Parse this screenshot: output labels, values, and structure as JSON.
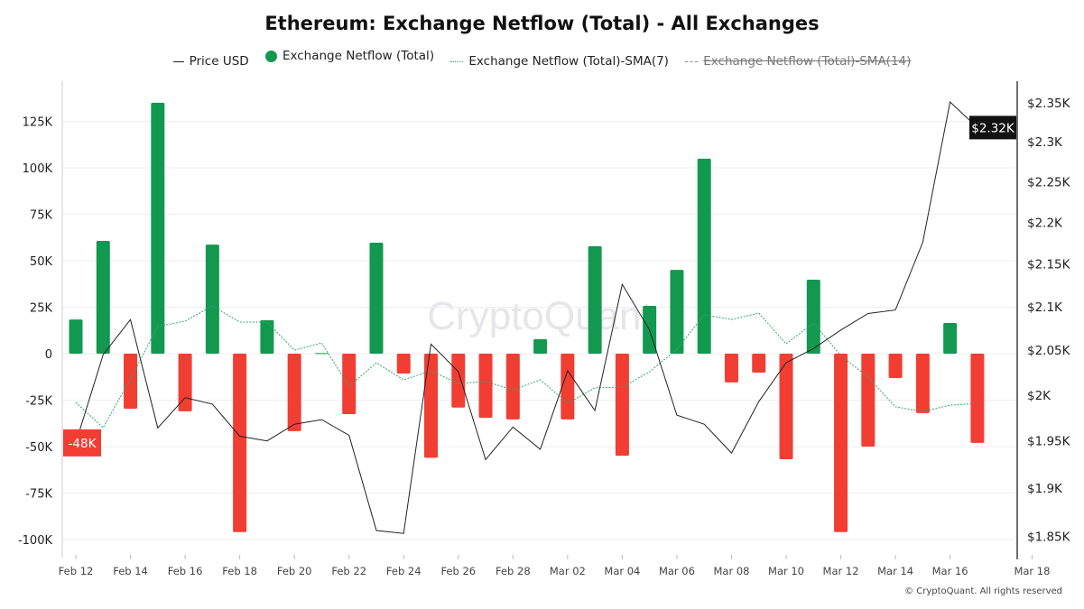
{
  "chart_data": {
    "type": "bar+line",
    "title": "Ethereum: Exchange Netflow (Total) - All Exchanges",
    "watermark": "CryptoQuant",
    "copyright": "© CryptoQuant. All rights reserved",
    "legend": {
      "placement": "top",
      "items": [
        {
          "label": "Price USD",
          "style": "line",
          "color": "#222222",
          "hidden": false
        },
        {
          "label": "Exchange Netflow (Total)",
          "style": "bar",
          "color": "#12994f",
          "hidden": false
        },
        {
          "label": "Exchange Netflow (Total)-SMA(7)",
          "style": "dotted",
          "color": "#2ea86a",
          "hidden": false
        },
        {
          "label": "Exchange Netflow (Total)-SMA(14)",
          "style": "dashed",
          "color": "#888888",
          "hidden": true
        }
      ]
    },
    "colors": {
      "positive": "#12994f",
      "negative": "#f23d33",
      "price": "#222222",
      "sma7": "#2ea86a",
      "grid": "#eeeeee"
    },
    "x": [
      "Feb 12",
      "Feb 13",
      "Feb 14",
      "Feb 15",
      "Feb 16",
      "Feb 17",
      "Feb 18",
      "Feb 19",
      "Feb 20",
      "Feb 21",
      "Feb 22",
      "Feb 23",
      "Feb 24",
      "Feb 25",
      "Feb 26",
      "Feb 27",
      "Feb 28",
      "Mar 01",
      "Mar 02",
      "Mar 03",
      "Mar 04",
      "Mar 05",
      "Mar 06",
      "Mar 07",
      "Mar 08",
      "Mar 09",
      "Mar 10",
      "Mar 11",
      "Mar 12",
      "Mar 13",
      "Mar 14",
      "Mar 15",
      "Mar 16",
      "Mar 17"
    ],
    "x_ticks": [
      "Feb 12",
      "Feb 14",
      "Feb 16",
      "Feb 18",
      "Feb 20",
      "Feb 22",
      "Feb 24",
      "Feb 26",
      "Feb 28",
      "Mar 02",
      "Mar 04",
      "Mar 06",
      "Mar 08",
      "Mar 10",
      "Mar 12",
      "Mar 14",
      "Mar 16",
      "Mar 18"
    ],
    "y_left": {
      "unit": "K",
      "ylim": [
        -105,
        145
      ],
      "ticks": [
        "125K",
        "100K",
        "75K",
        "50K",
        "25K",
        "0",
        "-25K",
        "-50K",
        "-75K",
        "-100K"
      ],
      "tick_values": [
        125,
        100,
        75,
        50,
        25,
        0,
        -25,
        -50,
        -75,
        -100
      ]
    },
    "y_right": {
      "scale": "log",
      "ylim": [
        1.84,
        2.39
      ],
      "ticks": [
        "$2.35K",
        "$2.3K",
        "$2.25K",
        "$2.2K",
        "$2.15K",
        "$2.1K",
        "$2.05K",
        "$2K",
        "$1.95K",
        "$1.9K",
        "$1.85K"
      ],
      "tick_values": [
        2.35,
        2.3,
        2.25,
        2.2,
        2.15,
        2.1,
        2.05,
        2.0,
        1.95,
        1.9,
        1.85
      ]
    },
    "series": [
      {
        "name": "Exchange Netflow (Total)",
        "axis": "left",
        "unit": "K",
        "values": [
          18.4,
          60.7,
          -29.6,
          135,
          -31,
          58.7,
          -96,
          18,
          -41.7,
          0.3,
          -32.5,
          59.7,
          -10.7,
          -56,
          -29,
          -34.5,
          -35.4,
          7.8,
          -35.4,
          57.8,
          -54.9,
          25.7,
          45.1,
          104.9,
          -15.5,
          -10.2,
          -56.8,
          39.8,
          -96,
          -50,
          -13.1,
          -32,
          16.5,
          -48
        ]
      },
      {
        "name": "Exchange Netflow (Total)-SMA(7)",
        "axis": "left",
        "unit": "K",
        "values": [
          -26.2,
          -39.8,
          -13.6,
          14.6,
          17.5,
          25.7,
          17,
          17,
          1.9,
          5.8,
          -17.5,
          -4.9,
          -14.1,
          -9.2,
          -16,
          -15,
          -19.4,
          -14.1,
          -26.7,
          -18.4,
          -18,
          -9.7,
          2.4,
          20.9,
          18.4,
          21.8,
          5.3,
          16.5,
          -1,
          -12.6,
          -28.6,
          -31.1,
          -27.7,
          -26.7
        ]
      },
      {
        "name": "Price USD",
        "axis": "right",
        "unit": "$K",
        "values": [
          1.947,
          2.044,
          2.084,
          1.963,
          1.996,
          1.989,
          1.954,
          1.949,
          1.967,
          1.972,
          1.955,
          1.855,
          1.852,
          2.056,
          2.025,
          1.929,
          1.964,
          1.94,
          2.026,
          1.982,
          2.125,
          2.072,
          1.977,
          1.967,
          1.936,
          1.992,
          2.035,
          2.051,
          2.072,
          2.091,
          2.095,
          2.175,
          2.35,
          2.317
        ]
      }
    ],
    "current_labels": {
      "netflow": "-48K",
      "price": "$2.32K"
    }
  }
}
